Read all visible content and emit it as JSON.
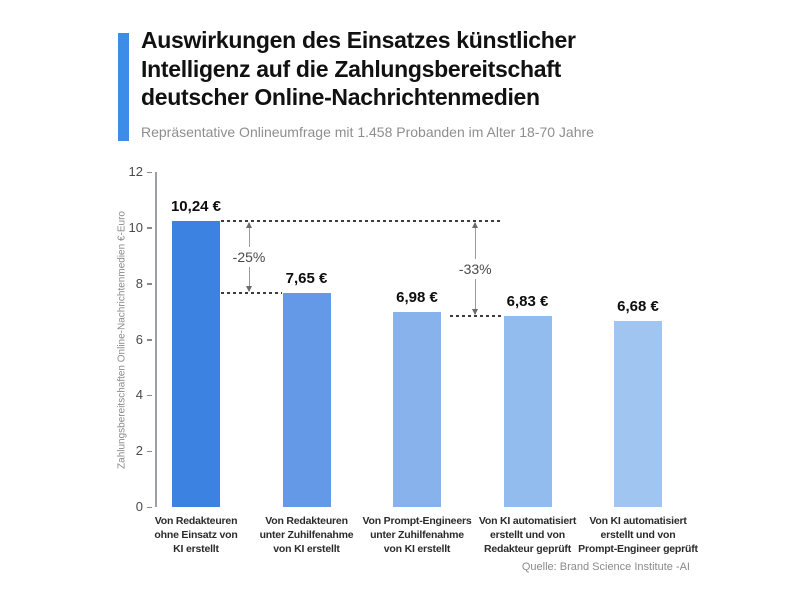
{
  "header": {
    "title": "Auswirkungen des Einsatzes künstlicher\nIntelligenz auf die Zahlungsbereitschaft\ndeutscher Online-Nachrichtenmedien",
    "subtitle": "Repräsentative Onlineumfrage mit 1.458 Probanden im Alter 18-70 Jahre",
    "accent_color": "#3d8ce8"
  },
  "chart_data": {
    "type": "bar",
    "title": "Auswirkungen des Einsatzes künstlicher Intelligenz auf die Zahlungsbereitschaft deutscher Online-Nachrichtenmedien",
    "categories": [
      "Von Redakteuren\nohne Einsatz von\nKI erstellt",
      "Von Redakteuren\nunter Zuhilfenahme\nvon KI erstellt",
      "Von Prompt-Engineers\nunter Zuhilfenahme\nvon KI erstellt",
      "Von KI automatisiert\nerstellt und von\nRedakteur geprüft",
      "Von KI automatisiert\nerstellt und von\nPrompt-Engineer geprüft"
    ],
    "values": [
      10.24,
      7.65,
      6.98,
      6.83,
      6.68
    ],
    "value_labels": [
      "10,24 €",
      "7,65 €",
      "6,98 €",
      "6,83 €",
      "6,68 €"
    ],
    "bar_colors": [
      "#3c82e0",
      "#6399e6",
      "#87b2ec",
      "#92bbee",
      "#a1c5f1"
    ],
    "ylabel": "Zahlungsbereitschaften Online-Nachrichtenmedien €-Euro",
    "ylim": [
      0,
      12
    ],
    "yticks": [
      0,
      2,
      4,
      6,
      8,
      10,
      12
    ],
    "grid": false,
    "legend": null,
    "annotations": [
      {
        "label": "-25%",
        "from_bar": 0,
        "to_bar": 1
      },
      {
        "label": "-33%",
        "from_bar": 0,
        "to_bar": 3
      }
    ]
  },
  "footer": {
    "source": "Quelle: Brand Science Institute -AI"
  }
}
